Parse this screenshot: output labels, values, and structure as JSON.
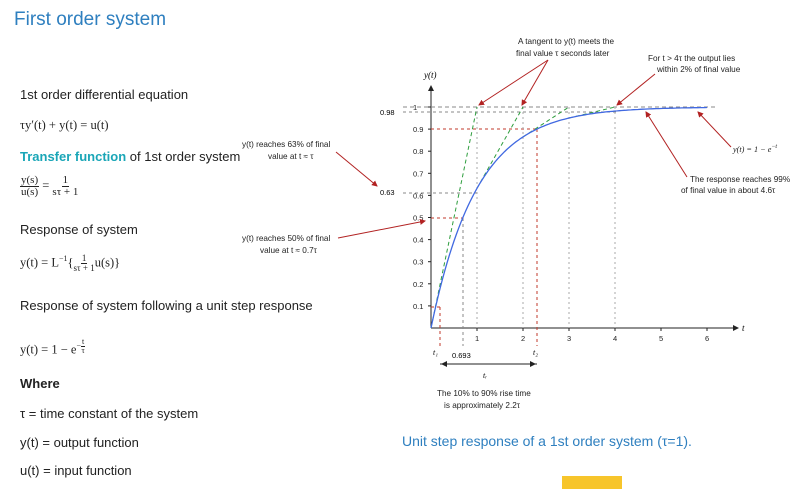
{
  "slide": {
    "title": "First order system",
    "caption": "Unit step response of a 1st order system (τ=1)."
  },
  "left": {
    "diff_eq_label": "1st order differential equation",
    "diff_eq": "τy′(t) + y(t) = u(t)",
    "tf_label_accent": "Transfer function",
    "tf_label_rest": " of 1st order system",
    "tf_lhs_num": "y(s)",
    "tf_lhs_den": "u(s)",
    "tf_eq": "=",
    "tf_rhs_num": "1",
    "tf_rhs_den": "sτ + 1",
    "resp_label": "Response of system",
    "resp_prefix": "y(t) = L",
    "resp_sup": "−1",
    "resp_open": "{",
    "resp_frac_num": "1",
    "resp_frac_den": "sτ + 1",
    "resp_close": "u(s)}",
    "step_label": "Response of system following a unit step response",
    "step_prefix": "y(t) = 1 − e",
    "step_sup_sign": "−",
    "step_sup_num": "t",
    "step_sup_den": "τ",
    "where_label": "Where",
    "def_tau": "τ = time constant of the system",
    "def_y": "y(t) = output function",
    "def_u": "u(t) = input function"
  },
  "chart_data": {
    "type": "line",
    "xlabel": "t",
    "ylabel": "y(t)",
    "xlim": [
      0,
      6.7
    ],
    "ylim": [
      0,
      1.1
    ],
    "x_ticks": [
      "1",
      "2",
      "3",
      "4",
      "5",
      "6"
    ],
    "y_ticks": [
      "0.1",
      "0.2",
      "0.3",
      "0.4",
      "0.5",
      "0.6",
      "0.7",
      "0.8",
      "0.9",
      "1"
    ],
    "extra_y_labels": [
      "0.98",
      "0.63"
    ],
    "x_markers": [
      "t₁",
      "0.693",
      "t₂",
      "tᵣ"
    ],
    "series": [
      {
        "function": "1 - exp(-t)",
        "x": [
          0,
          0.25,
          0.5,
          0.75,
          1,
          1.5,
          2,
          2.5,
          3,
          3.5,
          4,
          4.5,
          5,
          5.5,
          6
        ],
        "y": [
          0,
          0.221,
          0.393,
          0.528,
          0.632,
          0.777,
          0.865,
          0.918,
          0.95,
          0.97,
          0.982,
          0.989,
          0.993,
          0.996,
          0.998
        ]
      }
    ],
    "annotations": {
      "tangent": [
        "A tangent to y(t) meets the",
        "final value τ seconds later"
      ],
      "settle": [
        "For t > 4τ  the output lies",
        "within 2% of final value"
      ],
      "sixtythree": [
        "y(t) reaches 63% of final",
        "value at t ≈ τ"
      ],
      "fifty": [
        "y(t) reaches 50% of final",
        "value at t ≈ 0.7τ"
      ],
      "func": "y(t) = 1 − e",
      "func_sup": "−t",
      "ninetynine": [
        "The response reaches 99%",
        "of final value in about 4.6τ"
      ],
      "risetime": [
        "The 10% to 90% rise time",
        "is approximately 2.2τ"
      ]
    },
    "grid": false,
    "legend": "none"
  }
}
